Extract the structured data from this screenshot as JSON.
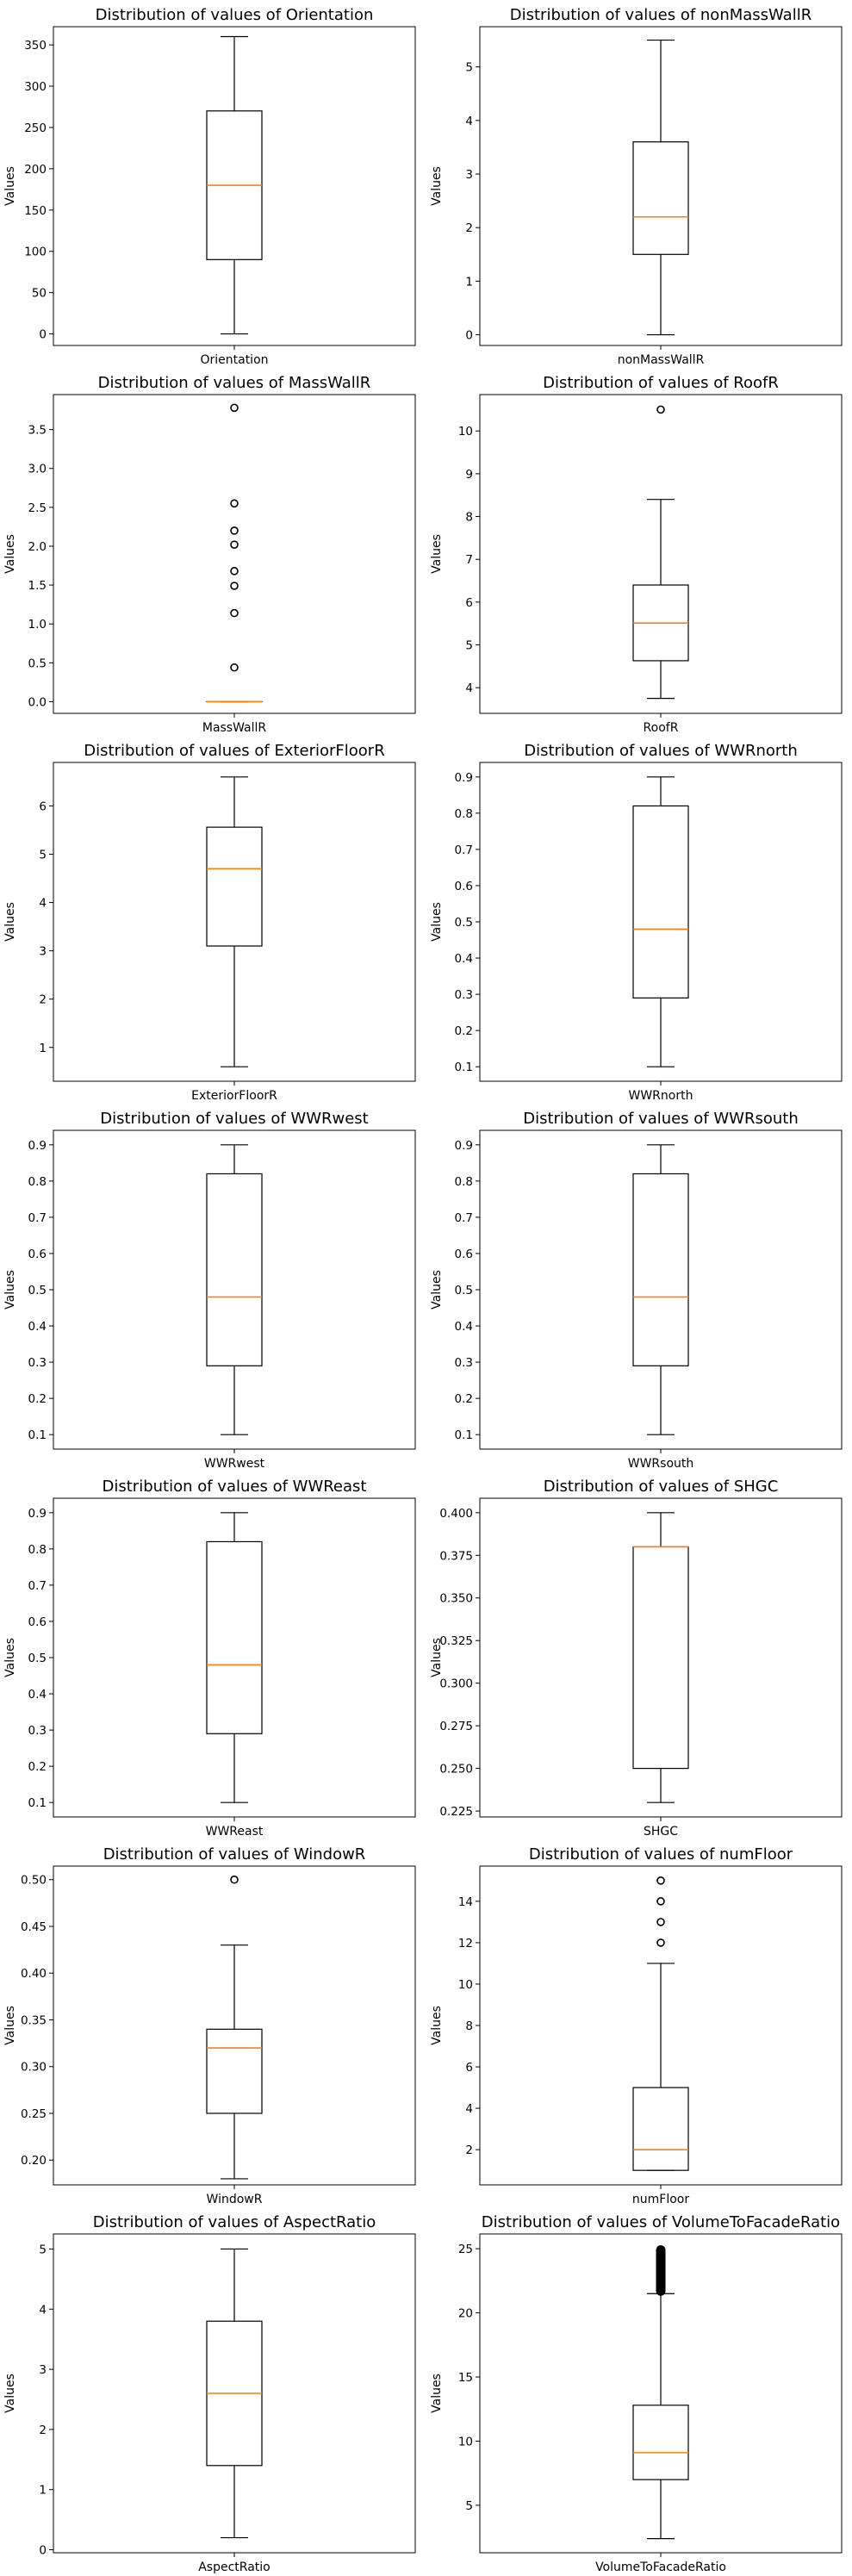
{
  "chart_data": [
    {
      "type": "box",
      "title": "Distribution of values of Orientation",
      "xlabel": "Orientation",
      "ylabel": "Values",
      "ylim": [
        -14,
        372
      ],
      "yticks": [
        0,
        50,
        100,
        150,
        200,
        250,
        300,
        350
      ],
      "box": {
        "min": 0,
        "q1": 90,
        "median": 180,
        "q3": 270,
        "max": 360
      },
      "outliers": [],
      "dense_outliers": null
    },
    {
      "type": "box",
      "title": "Distribution of values of nonMassWallR",
      "xlabel": "nonMassWallR",
      "ylabel": "Values",
      "ylim": [
        -0.2,
        5.75
      ],
      "yticks": [
        0,
        1,
        2,
        3,
        4,
        5
      ],
      "box": {
        "min": 0,
        "q1": 1.5,
        "median": 2.2,
        "q3": 3.6,
        "max": 5.5
      },
      "outliers": [],
      "dense_outliers": null
    },
    {
      "type": "box",
      "title": "Distribution of values of MassWallR",
      "xlabel": "MassWallR",
      "ylabel": "Values",
      "ylim": [
        -0.15,
        3.95
      ],
      "yticks": [
        0.0,
        0.5,
        1.0,
        1.5,
        2.0,
        2.5,
        3.0,
        3.5
      ],
      "tick_decimals": 1,
      "box": {
        "min": 0,
        "q1": 0,
        "median": 0,
        "q3": 0,
        "max": 0
      },
      "outliers": [
        0.44,
        1.14,
        1.49,
        1.68,
        2.02,
        2.2,
        2.55,
        3.78
      ],
      "dense_outliers": null
    },
    {
      "type": "box",
      "title": "Distribution of values of RoofR",
      "xlabel": "RoofR",
      "ylabel": "Values",
      "ylim": [
        3.4,
        10.85
      ],
      "yticks": [
        4,
        5,
        6,
        7,
        8,
        9,
        10
      ],
      "box": {
        "min": 3.75,
        "q1": 4.63,
        "median": 5.51,
        "q3": 6.4,
        "max": 8.4
      },
      "outliers": [
        10.5
      ],
      "dense_outliers": null
    },
    {
      "type": "box",
      "title": "Distribution of values of ExteriorFloorR",
      "xlabel": "ExteriorFloorR",
      "ylabel": "Values",
      "ylim": [
        0.3,
        6.9
      ],
      "yticks": [
        1,
        2,
        3,
        4,
        5,
        6
      ],
      "box": {
        "min": 0.6,
        "q1": 3.1,
        "median": 4.7,
        "q3": 5.56,
        "max": 6.6
      },
      "outliers": [],
      "dense_outliers": null
    },
    {
      "type": "box",
      "title": "Distribution of values of WWRnorth",
      "xlabel": "WWRnorth",
      "ylabel": "Values",
      "ylim": [
        0.06,
        0.94
      ],
      "yticks": [
        0.1,
        0.2,
        0.3,
        0.4,
        0.5,
        0.6,
        0.7,
        0.8,
        0.9
      ],
      "tick_decimals": 1,
      "box": {
        "min": 0.1,
        "q1": 0.29,
        "median": 0.48,
        "q3": 0.82,
        "max": 0.9
      },
      "outliers": [],
      "dense_outliers": null
    },
    {
      "type": "box",
      "title": "Distribution of values of WWRwest",
      "xlabel": "WWRwest",
      "ylabel": "Values",
      "ylim": [
        0.06,
        0.94
      ],
      "yticks": [
        0.1,
        0.2,
        0.3,
        0.4,
        0.5,
        0.6,
        0.7,
        0.8,
        0.9
      ],
      "tick_decimals": 1,
      "box": {
        "min": 0.1,
        "q1": 0.29,
        "median": 0.48,
        "q3": 0.82,
        "max": 0.9
      },
      "outliers": [],
      "dense_outliers": null
    },
    {
      "type": "box",
      "title": "Distribution of values of WWRsouth",
      "xlabel": "WWRsouth",
      "ylabel": "Values",
      "ylim": [
        0.06,
        0.94
      ],
      "yticks": [
        0.1,
        0.2,
        0.3,
        0.4,
        0.5,
        0.6,
        0.7,
        0.8,
        0.9
      ],
      "tick_decimals": 1,
      "box": {
        "min": 0.1,
        "q1": 0.29,
        "median": 0.48,
        "q3": 0.82,
        "max": 0.9
      },
      "outliers": [],
      "dense_outliers": null
    },
    {
      "type": "box",
      "title": "Distribution of values of WWReast",
      "xlabel": "WWReast",
      "ylabel": "Values",
      "ylim": [
        0.06,
        0.94
      ],
      "yticks": [
        0.1,
        0.2,
        0.3,
        0.4,
        0.5,
        0.6,
        0.7,
        0.8,
        0.9
      ],
      "tick_decimals": 1,
      "box": {
        "min": 0.1,
        "q1": 0.29,
        "median": 0.48,
        "q3": 0.82,
        "max": 0.9
      },
      "outliers": [],
      "dense_outliers": null
    },
    {
      "type": "box",
      "title": "Distribution of values of SHGC",
      "xlabel": "SHGC",
      "ylabel": "Values",
      "ylim": [
        0.2215,
        0.4085
      ],
      "yticks": [
        0.225,
        0.25,
        0.275,
        0.3,
        0.325,
        0.35,
        0.375,
        0.4
      ],
      "tick_decimals": 3,
      "box": {
        "min": 0.23,
        "q1": 0.25,
        "median": 0.38,
        "q3": 0.38,
        "max": 0.4
      },
      "outliers": [],
      "dense_outliers": null
    },
    {
      "type": "box",
      "title": "Distribution of values of WindowR",
      "xlabel": "WindowR",
      "ylabel": "Values",
      "ylim": [
        0.1735,
        0.5145
      ],
      "yticks": [
        0.2,
        0.25,
        0.3,
        0.35,
        0.4,
        0.45,
        0.5
      ],
      "tick_decimals": 2,
      "box": {
        "min": 0.18,
        "q1": 0.25,
        "median": 0.32,
        "q3": 0.34,
        "max": 0.43
      },
      "outliers": [
        0.5
      ],
      "dense_outliers": null
    },
    {
      "type": "box",
      "title": "Distribution of values of numFloor",
      "xlabel": "numFloor",
      "ylabel": "Values",
      "ylim": [
        0.3,
        15.7
      ],
      "yticks": [
        2,
        4,
        6,
        8,
        10,
        12,
        14
      ],
      "box": {
        "min": 1,
        "q1": 1,
        "median": 2,
        "q3": 5,
        "max": 11
      },
      "outliers": [
        12,
        13,
        14,
        15
      ],
      "dense_outliers": null
    },
    {
      "type": "box",
      "title": "Distribution of values of AspectRatio",
      "xlabel": "AspectRatio",
      "ylabel": "Values",
      "ylim": [
        -0.05,
        5.25
      ],
      "yticks": [
        0,
        1,
        2,
        3,
        4,
        5
      ],
      "box": {
        "min": 0.2,
        "q1": 1.4,
        "median": 2.6,
        "q3": 3.8,
        "max": 5.0
      },
      "outliers": [],
      "dense_outliers": null
    },
    {
      "type": "box",
      "title": "Distribution of values of VolumeToFacadeRatio",
      "xlabel": "VolumeToFacadeRatio",
      "ylabel": "Values",
      "ylim": [
        1.3,
        26.15
      ],
      "yticks": [
        5,
        10,
        15,
        20,
        25
      ],
      "box": {
        "min": 2.4,
        "q1": 7.0,
        "median": 9.1,
        "q3": 12.8,
        "max": 21.5
      },
      "outliers": [],
      "dense_outliers": [
        21.6,
        25.0
      ]
    }
  ],
  "colors": {
    "median": "#ff7f0e",
    "box": "#000000",
    "background": "#ffffff"
  }
}
